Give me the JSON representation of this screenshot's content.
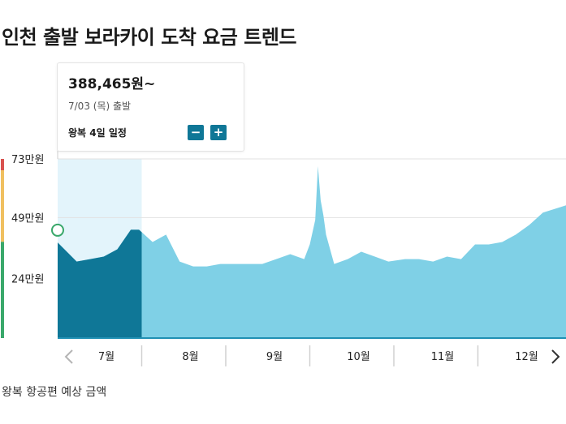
{
  "page_title": "인천 출발 보라카이 도착 요금 트렌드",
  "tooltip": {
    "price": "388,465원~",
    "date": "7/03 (목) 출발",
    "duration": "왕복 4일 일정",
    "minus_label": "−",
    "plus_label": "+"
  },
  "caption": "왕복 항공편 예상 금액",
  "colors": {
    "selected_fill": "#0f7797",
    "area_fill": "#7fd0e6",
    "highlight_band": "#e3f4fb",
    "scale_red": "#d9534f",
    "scale_yellow": "#f0c060",
    "scale_green": "#3aa86b"
  },
  "chart_data": {
    "type": "area",
    "title": "인천 출발 보라카이 도착 요금 트렌드",
    "xlabel": "",
    "ylabel": "",
    "y_ticks": [
      {
        "label": "73만원",
        "value": 730000
      },
      {
        "label": "49만원",
        "value": 490000
      },
      {
        "label": "24만원",
        "value": 240000
      }
    ],
    "ylim": [
      0,
      730000
    ],
    "months": [
      "7월",
      "8월",
      "9월",
      "10월",
      "11월",
      "12월"
    ],
    "x_unit": "departure date",
    "selected": {
      "date": "7/03",
      "value": 388465
    },
    "highlight_range": [
      "7/03",
      "7/31"
    ],
    "series": [
      {
        "x": [
          "7/03",
          "7/08",
          "7/13",
          "7/18",
          "7/23",
          "7/28",
          "7/31",
          "8/05",
          "8/10",
          "8/15",
          "8/20",
          "8/25",
          "8/30",
          "9/04",
          "9/09",
          "9/14",
          "9/19",
          "9/24",
          "9/29",
          "10/01",
          "10/03",
          "10/04",
          "10/05",
          "10/06",
          "10/07",
          "10/10",
          "10/15",
          "10/20",
          "10/25",
          "10/30",
          "11/05",
          "11/10",
          "11/15",
          "11/20",
          "11/25",
          "11/30",
          "12/05",
          "12/10",
          "12/15",
          "12/20",
          "12/25",
          "12/31"
        ],
        "values": [
          388000,
          310000,
          320000,
          330000,
          360000,
          440000,
          440000,
          390000,
          420000,
          310000,
          290000,
          290000,
          300000,
          300000,
          300000,
          300000,
          320000,
          340000,
          320000,
          380000,
          480000,
          700000,
          560000,
          500000,
          420000,
          300000,
          320000,
          350000,
          330000,
          310000,
          320000,
          320000,
          310000,
          330000,
          320000,
          380000,
          380000,
          390000,
          420000,
          460000,
          510000,
          540000
        ]
      }
    ]
  }
}
